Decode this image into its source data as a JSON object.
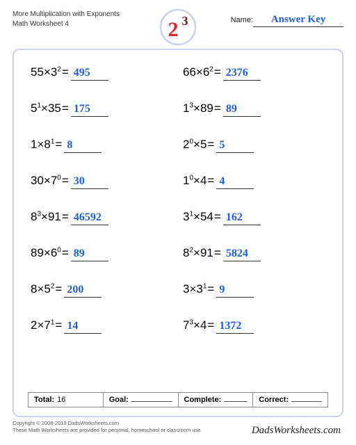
{
  "header": {
    "title_line1": "More Multiplication with Exponents",
    "title_line2": "Math Worksheet 4",
    "name_label": "Name:",
    "answer_key": "Answer Key"
  },
  "logo": {
    "base": "2",
    "exp": "3",
    "stroke": "#c9d0f0",
    "fill_red": "#d8262a",
    "fill_dark": "#7c1618"
  },
  "colors": {
    "frame_border": "#c9d0f0",
    "answer_text": "#1a5fe0",
    "text": "#000000"
  },
  "problems": [
    {
      "a": "55",
      "ae": "",
      "b": "3",
      "be": "2",
      "ans": "495"
    },
    {
      "a": "66",
      "ae": "",
      "b": "6",
      "be": "2",
      "ans": "2376"
    },
    {
      "a": "5",
      "ae": "1",
      "b": "35",
      "be": "",
      "ans": "175"
    },
    {
      "a": "1",
      "ae": "3",
      "b": "89",
      "be": "",
      "ans": "89"
    },
    {
      "a": "1",
      "ae": "",
      "b": "8",
      "be": "1",
      "ans": "8"
    },
    {
      "a": "2",
      "ae": "0",
      "b": "5",
      "be": "",
      "ans": "5"
    },
    {
      "a": "30",
      "ae": "",
      "b": "7",
      "be": "0",
      "ans": "30"
    },
    {
      "a": "1",
      "ae": "0",
      "b": "4",
      "be": "",
      "ans": "4"
    },
    {
      "a": "8",
      "ae": "3",
      "b": "91",
      "be": "",
      "ans": "46592"
    },
    {
      "a": "3",
      "ae": "1",
      "b": "54",
      "be": "",
      "ans": "162"
    },
    {
      "a": "89",
      "ae": "",
      "b": "6",
      "be": "0",
      "ans": "89"
    },
    {
      "a": "8",
      "ae": "2",
      "b": "91",
      "be": "",
      "ans": "5824"
    },
    {
      "a": "8",
      "ae": "",
      "b": "5",
      "be": "2",
      "ans": "200"
    },
    {
      "a": "3",
      "ae": "",
      "b": "3",
      "be": "1",
      "ans": "9"
    },
    {
      "a": "2",
      "ae": "",
      "b": "7",
      "be": "1",
      "ans": "14"
    },
    {
      "a": "7",
      "ae": "3",
      "b": "4",
      "be": "",
      "ans": "1372"
    }
  ],
  "footer": {
    "total_label": "Total:",
    "total_value": "16",
    "goal_label": "Goal:",
    "complete_label": "Complete:",
    "correct_label": "Correct:"
  },
  "copyright": {
    "line1": "Copyright © 2008-2019 DadsWorksheets.com",
    "line2": "These Math Worksheets are provided for personal, homeschool or classroom use."
  },
  "brand": "DadsWorksheets.com"
}
